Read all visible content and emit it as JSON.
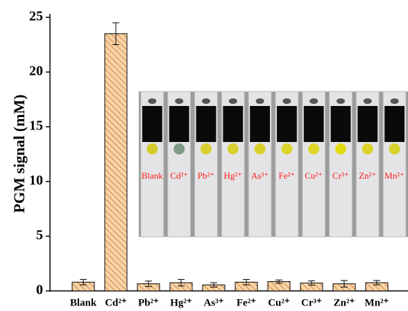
{
  "chart_data": {
    "type": "bar",
    "y_label": "PGM signal (mM)",
    "categories": [
      "Blank",
      "Cd²⁺",
      "Pb²⁺",
      "Hg²⁺",
      "As³⁺",
      "Fe²⁺",
      "Cu²⁺",
      "Cr³⁺",
      "Zn²⁺",
      "Mn²⁺"
    ],
    "values": [
      0.8,
      23.5,
      0.65,
      0.75,
      0.55,
      0.8,
      0.85,
      0.72,
      0.65,
      0.75
    ],
    "errors": [
      0.25,
      1.0,
      0.25,
      0.3,
      0.2,
      0.25,
      0.15,
      0.2,
      0.3,
      0.2
    ],
    "color": "#f9d3a5",
    "hatch_color": "#b5672a",
    "ylim": [
      0,
      25
    ],
    "yticks": [
      0,
      5,
      10,
      15,
      20,
      25
    ],
    "inset_labels": [
      "Blank",
      "Cd²⁺",
      "Pb²⁺",
      "Hg²⁺",
      "As³⁺",
      "Fe²⁺",
      "Cu²⁺",
      "Cr³⁺",
      "Zn²⁺",
      "Mn²⁺"
    ],
    "inset_spot_colors": [
      "#d4cc2a",
      "#7f9a86",
      "#d8d030",
      "#d6cf2c",
      "#d8d12a",
      "#dcd32c",
      "#dcd528",
      "#e3da12",
      "#dcd42a",
      "#d6d02a"
    ],
    "inset_label_color": "#ff1a1a"
  }
}
